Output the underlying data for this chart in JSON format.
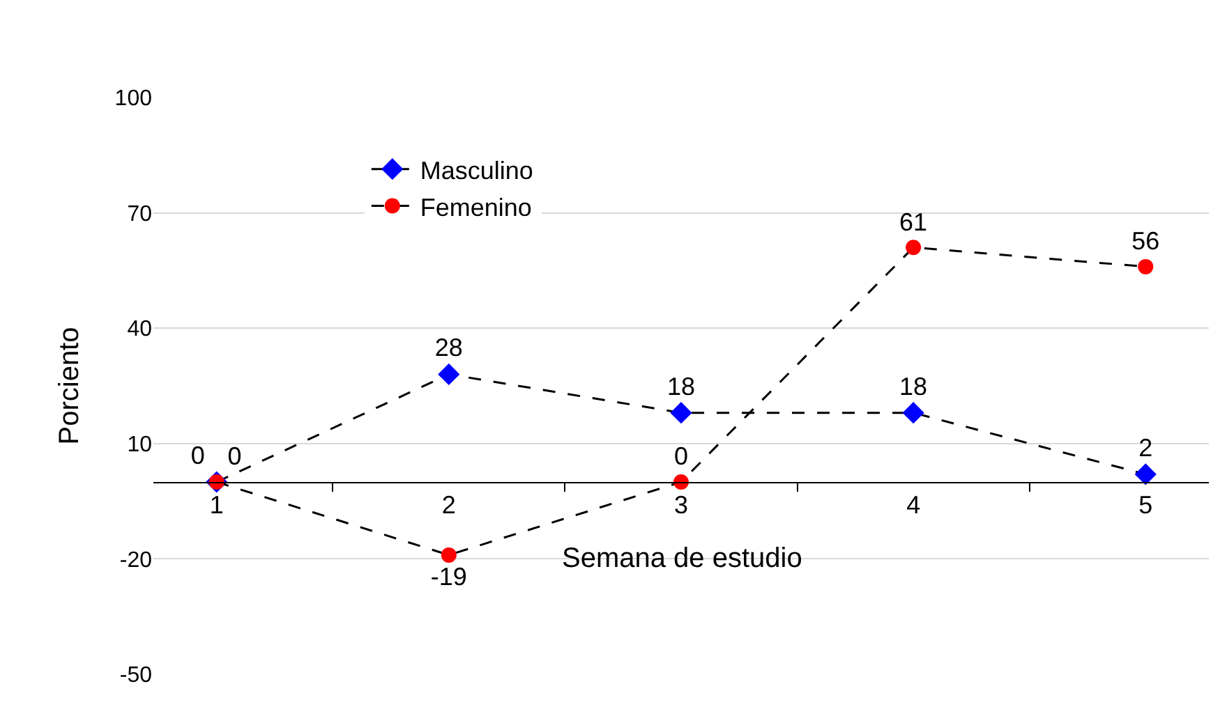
{
  "chart_data": {
    "type": "line",
    "xlabel": "Semana de estudio",
    "ylabel": "Porciento",
    "categories": [
      "1",
      "2",
      "3",
      "4",
      "5"
    ],
    "series": [
      {
        "name": "Masculino",
        "color": "#0000ff",
        "marker": "diamond",
        "values": [
          0,
          28,
          18,
          18,
          2
        ]
      },
      {
        "name": "Femenino",
        "color": "#ff0000",
        "marker": "circle",
        "values": [
          0,
          -19,
          0,
          61,
          56
        ]
      }
    ],
    "ylim": [
      -50,
      100
    ],
    "yticks": [
      -50,
      -20,
      10,
      40,
      70,
      100
    ],
    "grid": "y",
    "legend": "top left",
    "line_style": "dashed",
    "data_labels": true
  }
}
